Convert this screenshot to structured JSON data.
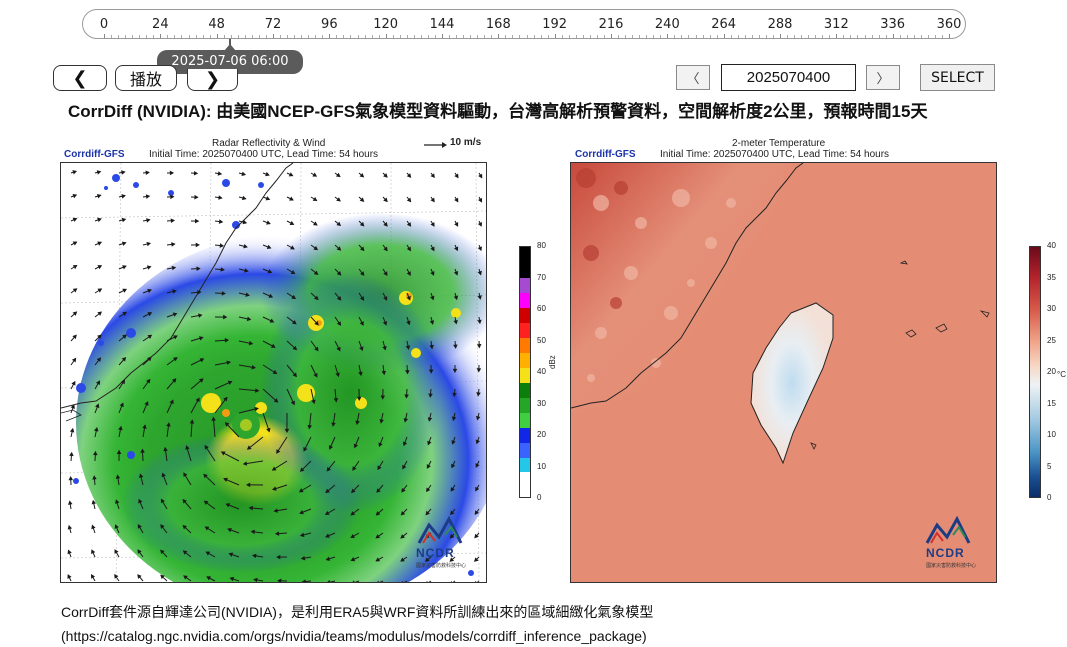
{
  "timeline": {
    "ticks": [
      "0",
      "24",
      "48",
      "72",
      "96",
      "120",
      "144",
      "168",
      "192",
      "216",
      "240",
      "264",
      "288",
      "312",
      "336",
      "360"
    ],
    "current_time": "2025-07-06 06:00"
  },
  "controls": {
    "prev_label": "❮",
    "play_label": "播放",
    "next_label": "❯",
    "date_prev_label": "〈",
    "date_value": "2025070400",
    "date_next_label": "〉",
    "select_label": "SELECT"
  },
  "title": "CorrDiff (NVIDIA): 由美國NCEP-GFS氣象模型資料驅動，台灣高解析預警資料，空間解析度2公里，預報時間15天",
  "left_panel": {
    "title": "Radar Reflectivity & Wind",
    "wind_ref": "10 m/s",
    "source": "Corrdiff-GFS",
    "info": "Initial Time: 2025070400 UTC, Lead Time: 54 hours",
    "colorbar_unit": "dBz",
    "colorbar_ticks": [
      "80",
      "70",
      "60",
      "50",
      "40",
      "30",
      "20",
      "10",
      "0"
    ],
    "logo_text": "NCDR",
    "logo_sub": "國家災害防救科技中心"
  },
  "right_panel": {
    "title": "2-meter Temperature",
    "source": "Corrdiff-GFS",
    "info": "Initial Time: 2025070400 UTC, Lead Time: 54 hours",
    "colorbar_unit": "°C",
    "colorbar_ticks": [
      "40",
      "35",
      "30",
      "25",
      "20",
      "15",
      "10",
      "5",
      "0"
    ],
    "logo_text": "NCDR",
    "logo_sub": "國家災害防救科技中心"
  },
  "footer": {
    "line1": "CorrDiff套件源自輝達公司(NVIDIA)，是利用ERA5與WRF資料所訓練出來的區域細緻化氣象模型",
    "line2": "(https://catalog.ngc.nvidia.com/orgs/nvidia/teams/modulus/models/corrdiff_inference_package)"
  }
}
